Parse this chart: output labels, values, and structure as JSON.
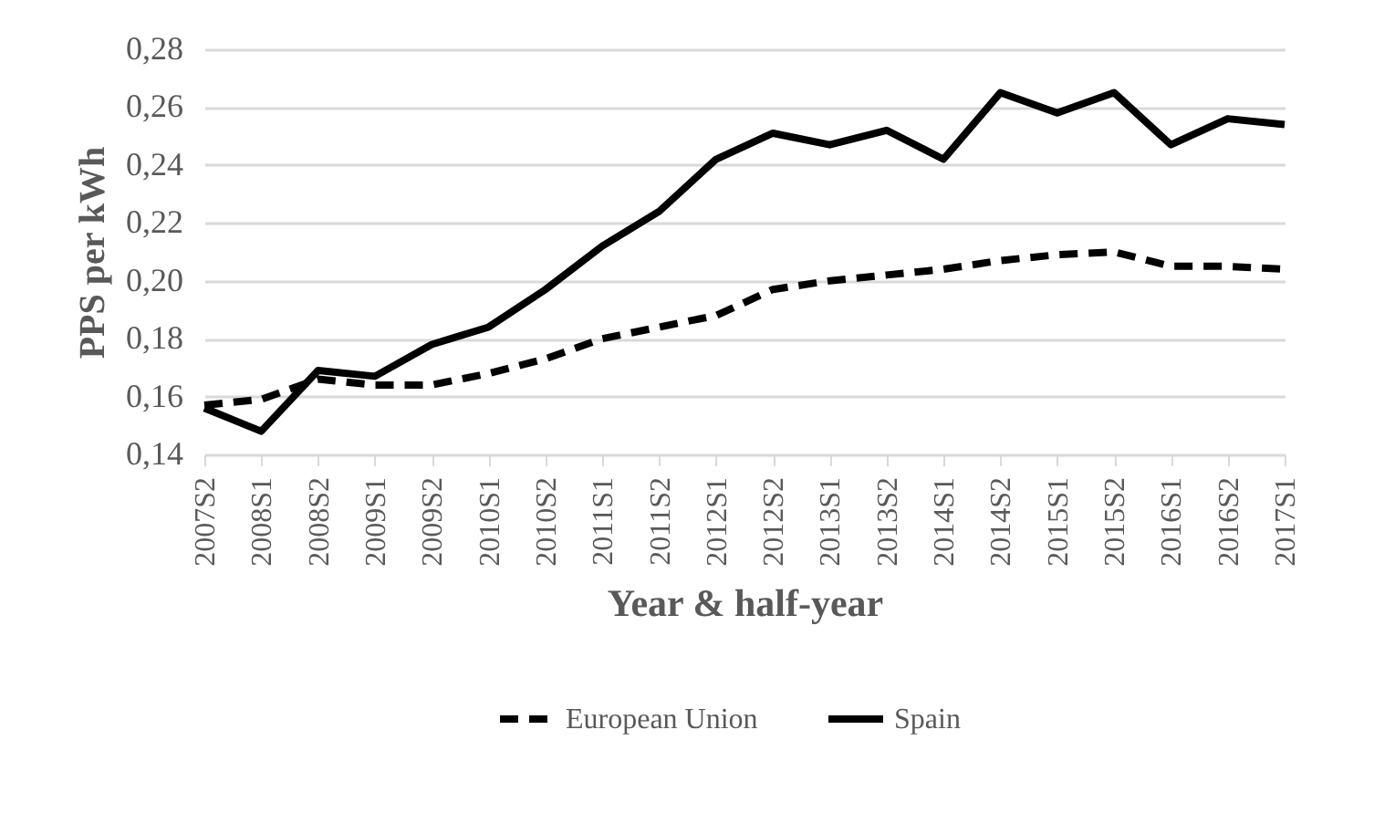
{
  "chart_data": {
    "type": "line",
    "xlabel": "Year & half-year",
    "ylabel": "PPS per kWh",
    "categories": [
      "2007S2",
      "2008S1",
      "2008S2",
      "2009S1",
      "2009S2",
      "2010S1",
      "2010S2",
      "2011S1",
      "2011S2",
      "2012S1",
      "2012S2",
      "2013S1",
      "2013S2",
      "2014S1",
      "2014S2",
      "2015S1",
      "2015S2",
      "2016S1",
      "2016S2",
      "2017S1"
    ],
    "series": [
      {
        "name": "European Union",
        "color": "#000000",
        "line_style": "dashed",
        "values": [
          0.157,
          0.159,
          0.166,
          0.164,
          0.164,
          0.168,
          0.173,
          0.18,
          0.184,
          0.188,
          0.197,
          0.2,
          0.202,
          0.204,
          0.207,
          0.209,
          0.21,
          0.205,
          0.205,
          0.204
        ]
      },
      {
        "name": "Spain",
        "color": "#000000",
        "line_style": "solid",
        "values": [
          0.156,
          0.148,
          0.169,
          0.167,
          0.178,
          0.184,
          0.197,
          0.212,
          0.224,
          0.242,
          0.251,
          0.247,
          0.252,
          0.242,
          0.265,
          0.258,
          0.265,
          0.247,
          0.256,
          0.254
        ]
      }
    ],
    "ylim": [
      0.14,
      0.28
    ],
    "yticks": [
      {
        "value": 0.14,
        "label": "0,14"
      },
      {
        "value": 0.16,
        "label": "0,16"
      },
      {
        "value": 0.18,
        "label": "0,18"
      },
      {
        "value": 0.2,
        "label": "0,20"
      },
      {
        "value": 0.22,
        "label": "0,22"
      },
      {
        "value": 0.24,
        "label": "0,24"
      },
      {
        "value": 0.26,
        "label": "0,26"
      },
      {
        "value": 0.28,
        "label": "0,28"
      }
    ],
    "grid": "y",
    "legend": "bottom",
    "marker": "none"
  }
}
